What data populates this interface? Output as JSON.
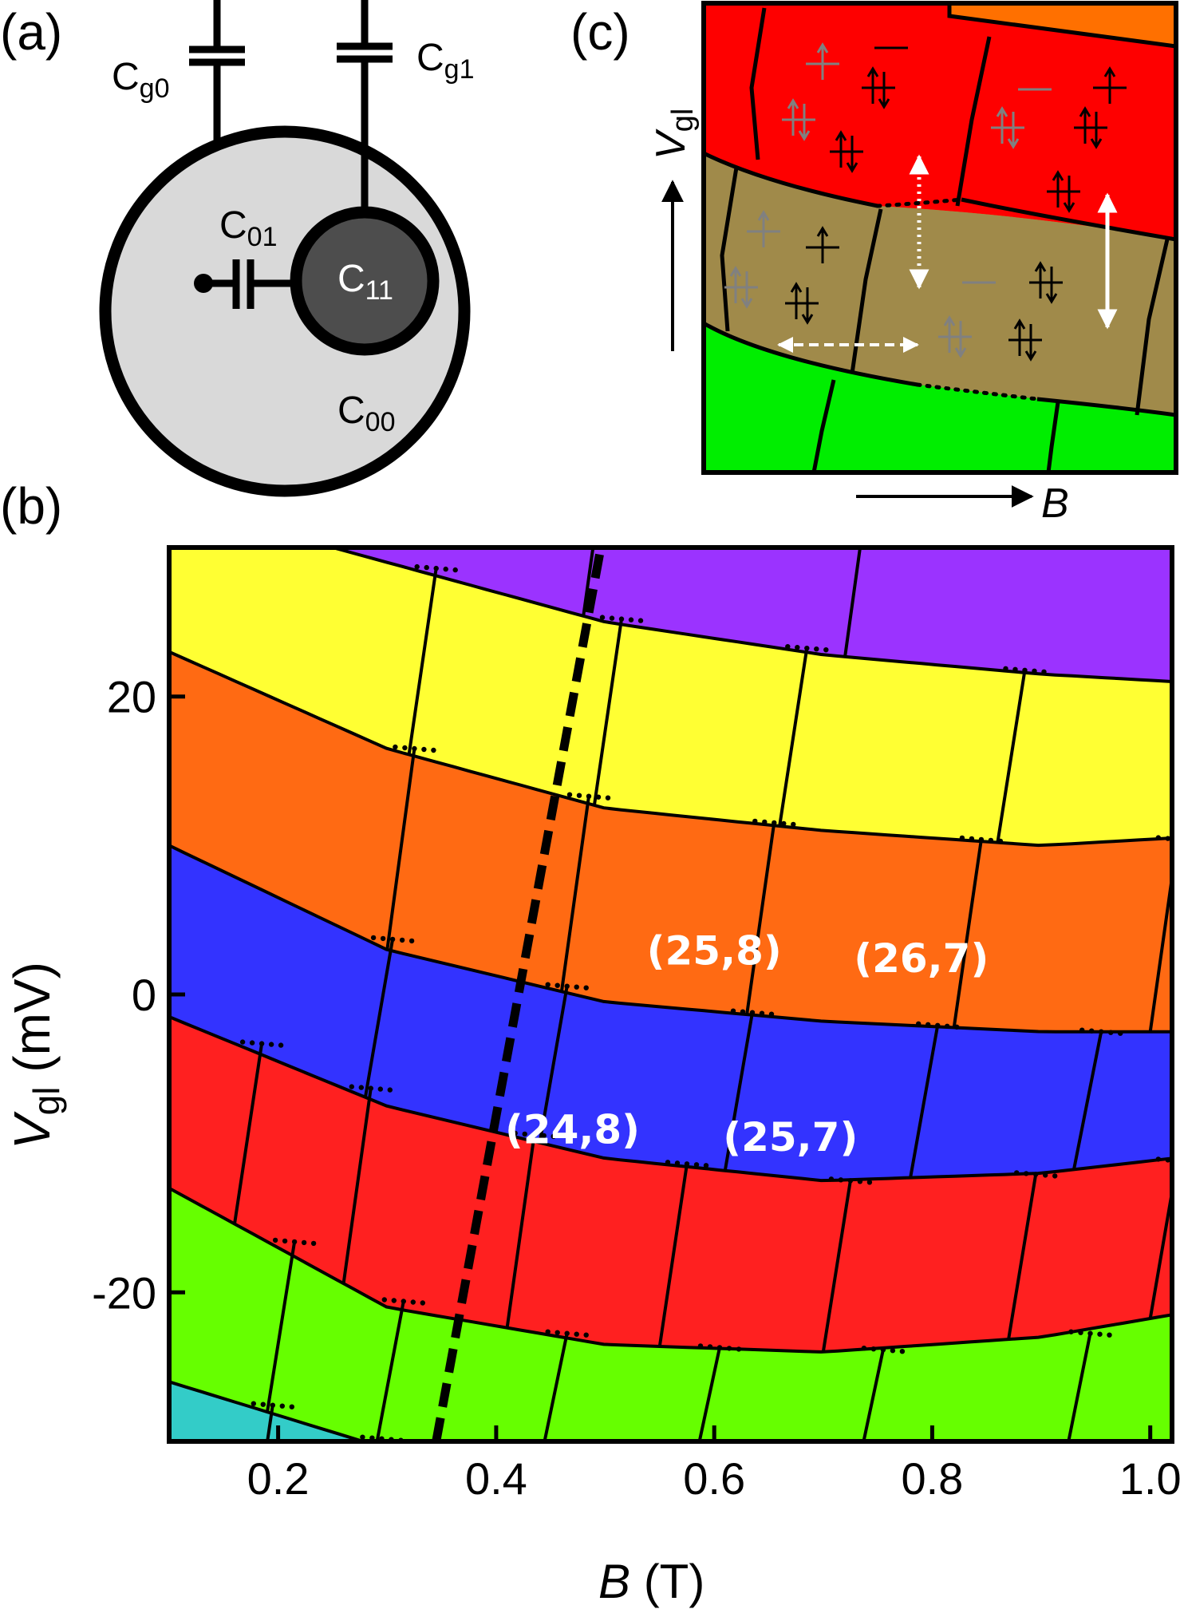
{
  "panels": {
    "a": {
      "label": "(a)",
      "capacitors": {
        "cg0_main": "C",
        "cg0_sub": "g0",
        "cg1_main": "C",
        "cg1_sub": "g1",
        "c01_main": "C",
        "c01_sub": "01",
        "c11_main": "C",
        "c11_sub": "11",
        "c00_main": "C",
        "c00_sub": "00"
      },
      "colors": {
        "outer_dot": "#d9d9d9",
        "inner_dot": "#4d4d4d",
        "wire": "#000000"
      }
    },
    "b": {
      "label": "(b)"
    },
    "c": {
      "label": "(c)",
      "ylabel_main": "V",
      "ylabel_sub": "gl",
      "xlabel": "B",
      "region_colors": {
        "red": "#fe0000",
        "olive": "#a08a4a",
        "green": "#00ee00",
        "orange": "#ff7000"
      },
      "arrow_colors": {
        "black": "#000000",
        "gray": "#808080",
        "white": "#ffffff"
      }
    }
  },
  "chart_data": {
    "type": "heatmap",
    "title": "",
    "xlabel_main": "B",
    "xlabel_unit": "(T)",
    "ylabel_main": "V",
    "ylabel_sub": "gl",
    "ylabel_unit": "(mV)",
    "xlim": [
      0.1,
      1.02
    ],
    "ylim": [
      -30,
      30
    ],
    "xticks": [
      0.2,
      0.4,
      0.6,
      0.8,
      1.0
    ],
    "xtick_labels": [
      "0.2",
      "0.4",
      "0.6",
      "0.8",
      "1.0"
    ],
    "yticks": [
      20,
      0,
      -20
    ],
    "ytick_labels": [
      "20",
      "0",
      "-20"
    ],
    "band_colors": {
      "cyan": "#33ccc8",
      "green": "#66ff00",
      "red": "#ff2020",
      "blue": "#3333ff",
      "orange": "#ff6a13",
      "yellow": "#ffff33",
      "purple": "#9b33ff"
    },
    "band_boundary_anchors_x": [
      0.1,
      0.3,
      0.5,
      0.7,
      0.9,
      1.02
    ],
    "band_boundaries_mV": [
      [
        -26.0,
        -30.5,
        -32.0,
        -32.5,
        -32.0,
        -31.0
      ],
      [
        -13.0,
        -21.0,
        -23.5,
        -24.0,
        -23.0,
        -21.5
      ],
      [
        -1.5,
        -7.5,
        -11.0,
        -12.5,
        -12.0,
        -11.0
      ],
      [
        10.0,
        3.0,
        -0.5,
        -1.8,
        -2.5,
        -2.5
      ],
      [
        23.0,
        16.5,
        12.5,
        11.0,
        10.0,
        10.5
      ],
      [
        33.0,
        29.0,
        25.0,
        22.8,
        21.5,
        21.0
      ],
      [
        45.0,
        42.0,
        38.0,
        36.0,
        35.0,
        35.0
      ]
    ],
    "band_order_bottom_to_top": [
      "cyan",
      "green",
      "red",
      "blue",
      "orange",
      "yellow",
      "purple"
    ],
    "vertical_transition_lines_B": [
      [
        0.17,
        0.27,
        0.37,
        0.52,
        0.68,
        0.85,
        1.0
      ],
      [
        0.19,
        0.29,
        0.44,
        0.58,
        0.73,
        0.92
      ],
      [
        0.16,
        0.26,
        0.41,
        0.55,
        0.7,
        0.87,
        1.0
      ],
      [
        0.28,
        0.44,
        0.61,
        0.78,
        0.93
      ],
      [
        0.3,
        0.46,
        0.63,
        0.82,
        1.0
      ],
      [
        0.32,
        0.49,
        0.66,
        0.86
      ],
      [
        0.48,
        0.72
      ]
    ],
    "dashed_line": {
      "B": [
        0.345,
        0.496
      ],
      "Vgl_mV": [
        -30,
        30
      ]
    },
    "annotations": [
      {
        "text": "(25,8)",
        "B": 0.6,
        "Vgl_mV": 2.0
      },
      {
        "text": "(26,7)",
        "B": 0.79,
        "Vgl_mV": 1.5
      },
      {
        "text": "(24,8)",
        "B": 0.47,
        "Vgl_mV": -10.0
      },
      {
        "text": "(25,7)",
        "B": 0.67,
        "Vgl_mV": -10.5
      }
    ]
  }
}
